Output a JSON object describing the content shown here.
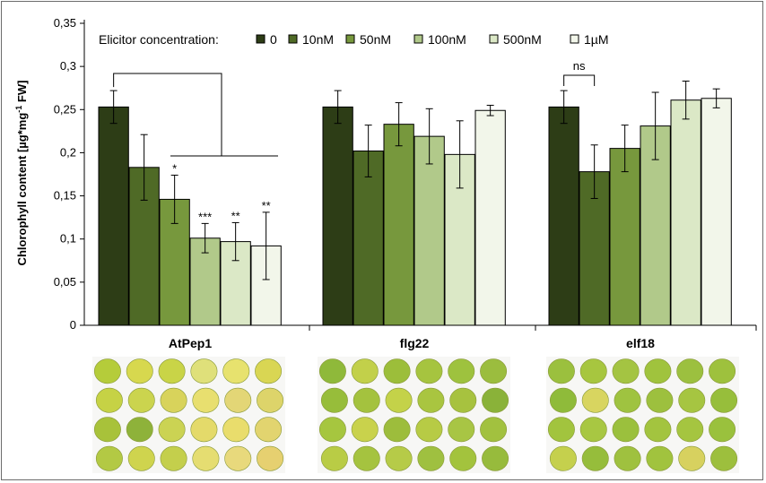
{
  "chart_data": {
    "type": "bar",
    "ylabel": "Chlorophyll content [µg*mg⁻¹ FW]",
    "ylabel_parts": {
      "base": "Chlorophyll content [µg*mg",
      "sup": "-1",
      "tail": " FW]"
    },
    "ylim": [
      0,
      0.35
    ],
    "yticks": [
      {
        "value": 0,
        "label": "0"
      },
      {
        "value": 0.05,
        "label": "0,05"
      },
      {
        "value": 0.1,
        "label": "0,1"
      },
      {
        "value": 0.15,
        "label": "0,15"
      },
      {
        "value": 0.2,
        "label": "0,2"
      },
      {
        "value": 0.25,
        "label": "0,25"
      },
      {
        "value": 0.3,
        "label": "0,3"
      },
      {
        "value": 0.35,
        "label": "0,35"
      }
    ],
    "categories": [
      "AtPep1",
      "flg22",
      "elf18"
    ],
    "legend_title": "Elicitor concentration:",
    "series": [
      {
        "name": "0",
        "color": "#2d3d16",
        "values": [
          0.253,
          0.253,
          0.253
        ],
        "errors": [
          0.019,
          0.019,
          0.019
        ]
      },
      {
        "name": "10nM",
        "color": "#4f6a26",
        "values": [
          0.183,
          0.202,
          0.178
        ],
        "errors": [
          0.038,
          0.03,
          0.031
        ]
      },
      {
        "name": "50nM",
        "color": "#77983d",
        "values": [
          0.146,
          0.233,
          0.205
        ],
        "errors": [
          0.028,
          0.025,
          0.027
        ]
      },
      {
        "name": "100nM",
        "color": "#b1c98a",
        "values": [
          0.101,
          0.219,
          0.231
        ],
        "errors": [
          0.017,
          0.032,
          0.039
        ]
      },
      {
        "name": "500nM",
        "color": "#dbe8c6",
        "values": [
          0.097,
          0.198,
          0.261
        ],
        "errors": [
          0.022,
          0.039,
          0.022
        ]
      },
      {
        "name": "1µM",
        "color": "#f2f6ea",
        "values": [
          0.092,
          0.249,
          0.263
        ],
        "errors": [
          0.039,
          0.006,
          0.011
        ]
      }
    ],
    "significance": [
      {
        "category": 0,
        "series": 2,
        "label": "*"
      },
      {
        "category": 0,
        "series": 3,
        "label": "***"
      },
      {
        "category": 0,
        "series": 4,
        "label": "**"
      },
      {
        "category": 0,
        "series": 5,
        "label": "**"
      }
    ],
    "brackets": [
      {
        "category": 0,
        "from_series": 0,
        "to_series": 5,
        "label": ""
      },
      {
        "category": 2,
        "from_series": 0,
        "to_series": 1,
        "label": "ns"
      }
    ],
    "grid": false,
    "legend_position": "top"
  },
  "leaf_panels": [
    {
      "category": "AtPep1",
      "leaves": [
        [
          "#b5cc3a",
          "#d7d84e",
          "#c9d447",
          "#dfe07a",
          "#e7e26e",
          "#d9d653"
        ],
        [
          "#c6d245",
          "#cbd44e",
          "#d8d35b",
          "#e8df6f",
          "#e3d676",
          "#ddd46a"
        ],
        [
          "#a8c23a",
          "#8eb23a",
          "#cbd353",
          "#e4da6a",
          "#e9dd6c",
          "#e2d46f"
        ],
        [
          "#b3c944",
          "#cfd44e",
          "#c4cf4c",
          "#e5dd71",
          "#e8d97c",
          "#e6d070"
        ]
      ]
    },
    {
      "category": "flg22",
      "leaves": [
        [
          "#8fb93a",
          "#c2d04a",
          "#9cbe3a",
          "#a6c43f",
          "#9ec23e",
          "#9bbd3e"
        ],
        [
          "#97bd3a",
          "#a4c23e",
          "#c4d249",
          "#a9c540",
          "#a7c23f",
          "#8ab239"
        ],
        [
          "#a6c63f",
          "#c9d24c",
          "#9dbd3c",
          "#b7cb45",
          "#a8c544",
          "#a2c13f"
        ],
        [
          "#b9cc45",
          "#a5c33f",
          "#b6cb48",
          "#9fc040",
          "#a3c33d",
          "#97bb3c"
        ]
      ]
    },
    {
      "category": "elf18",
      "leaves": [
        [
          "#9bc03e",
          "#a7c63f",
          "#a4c442",
          "#a0c33d",
          "#9cc03f",
          "#9ec13d"
        ],
        [
          "#8fbb3a",
          "#d8d560",
          "#9fc340",
          "#9dc03e",
          "#a6c541",
          "#97be3b"
        ],
        [
          "#a2c43e",
          "#a8c742",
          "#9bc03d",
          "#a3c43f",
          "#a5c540",
          "#9ac13d"
        ],
        [
          "#c5d04d",
          "#96bd3b",
          "#9fc13f",
          "#a1c33e",
          "#d7d15f",
          "#9dbf3d"
        ]
      ]
    }
  ]
}
